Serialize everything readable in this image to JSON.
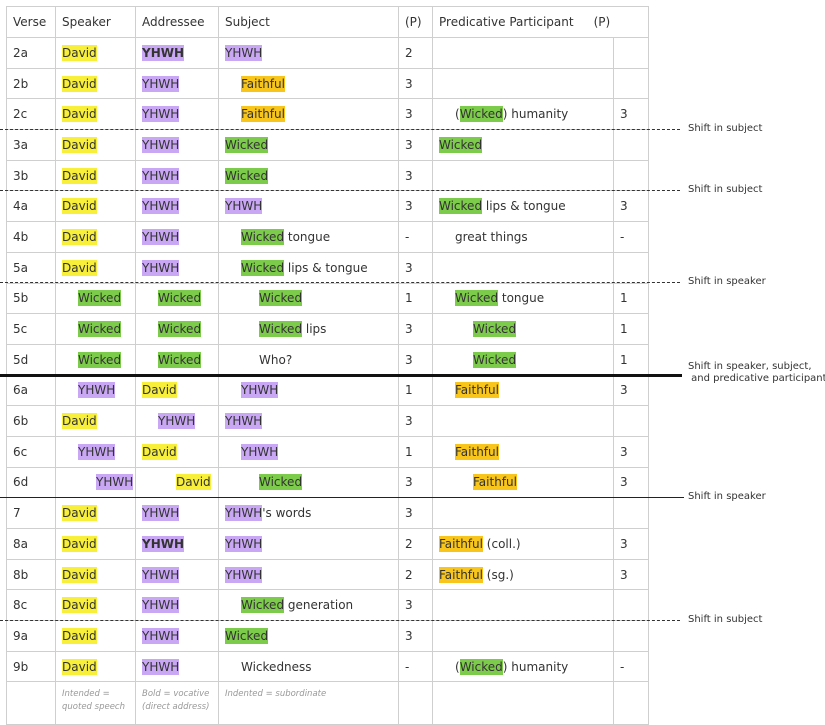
{
  "colors": {
    "yellow": "#f7ef3a",
    "purple": "#c9a7f4",
    "orange": "#f7c51b",
    "green": "#7dcb4a"
  },
  "headers": {
    "verse": "Verse",
    "speaker": "Speaker",
    "addressee": "Addressee",
    "subject": "Subject",
    "p1": "(P)",
    "pred": "Predicative Participant",
    "p2": "(P)"
  },
  "rows": [
    {
      "v": "2a",
      "sp": [
        {
          "t": "David",
          "c": "yellow"
        }
      ],
      "ad": [
        {
          "t": "YHWH",
          "c": "purple",
          "b": true
        }
      ],
      "su": [
        {
          "t": "YHWH",
          "c": "purple"
        }
      ],
      "p": "2",
      "pr": [],
      "pp": ""
    },
    {
      "v": "2b",
      "sp": [
        {
          "t": "David",
          "c": "yellow"
        }
      ],
      "ad": [
        {
          "t": "YHWH",
          "c": "purple"
        }
      ],
      "su": [
        {
          "t": "Faithful",
          "c": "orange"
        }
      ],
      "suI": 1,
      "p": "3",
      "pr": [],
      "pp": ""
    },
    {
      "v": "2c",
      "sp": [
        {
          "t": "David",
          "c": "yellow"
        }
      ],
      "ad": [
        {
          "t": "YHWH",
          "c": "purple"
        }
      ],
      "su": [
        {
          "t": "Faithful",
          "c": "orange"
        }
      ],
      "suI": 1,
      "p": "3",
      "pr": [
        {
          "t": "("
        },
        {
          "t": "Wicked",
          "c": "green"
        },
        {
          "t": ") humanity"
        }
      ],
      "prI": 1,
      "pp": "3"
    },
    {
      "v": "3a",
      "sp": [
        {
          "t": "David",
          "c": "yellow"
        }
      ],
      "ad": [
        {
          "t": "YHWH",
          "c": "purple"
        }
      ],
      "su": [
        {
          "t": "Wicked",
          "c": "green"
        }
      ],
      "p": "3",
      "pr": [
        {
          "t": "Wicked",
          "c": "green"
        }
      ],
      "pp": ""
    },
    {
      "v": "3b",
      "sp": [
        {
          "t": "David",
          "c": "yellow"
        }
      ],
      "ad": [
        {
          "t": "YHWH",
          "c": "purple"
        }
      ],
      "su": [
        {
          "t": "Wicked",
          "c": "green"
        }
      ],
      "p": "3",
      "pr": [],
      "pp": ""
    },
    {
      "v": "4a",
      "sp": [
        {
          "t": "David",
          "c": "yellow"
        }
      ],
      "ad": [
        {
          "t": "YHWH",
          "c": "purple"
        }
      ],
      "su": [
        {
          "t": "YHWH",
          "c": "purple"
        }
      ],
      "p": "3",
      "pr": [
        {
          "t": "Wicked",
          "c": "green"
        },
        {
          "t": " lips & tongue"
        }
      ],
      "pp": "3"
    },
    {
      "v": "4b",
      "sp": [
        {
          "t": "David",
          "c": "yellow"
        }
      ],
      "ad": [
        {
          "t": "YHWH",
          "c": "purple"
        }
      ],
      "su": [
        {
          "t": "Wicked",
          "c": "green"
        },
        {
          "t": " tongue"
        }
      ],
      "suI": 1,
      "p": "-",
      "pr": [
        {
          "t": "great things"
        }
      ],
      "prI": 1,
      "pp": "-"
    },
    {
      "v": "5a",
      "sp": [
        {
          "t": "David",
          "c": "yellow"
        }
      ],
      "ad": [
        {
          "t": "YHWH",
          "c": "purple"
        }
      ],
      "su": [
        {
          "t": "Wicked",
          "c": "green"
        },
        {
          "t": " lips & tongue"
        }
      ],
      "suI": 1,
      "p": "3",
      "pr": [],
      "pp": ""
    },
    {
      "v": "5b",
      "sp": [
        {
          "t": "Wicked",
          "c": "green"
        }
      ],
      "spI": 1,
      "ad": [
        {
          "t": "Wicked",
          "c": "green"
        }
      ],
      "adI": 1,
      "su": [
        {
          "t": "Wicked",
          "c": "green"
        }
      ],
      "suI": 2,
      "p": "1",
      "pr": [
        {
          "t": "Wicked",
          "c": "green"
        },
        {
          "t": " tongue"
        }
      ],
      "prI": 1,
      "pp": "1"
    },
    {
      "v": "5c",
      "sp": [
        {
          "t": "Wicked",
          "c": "green"
        }
      ],
      "spI": 1,
      "ad": [
        {
          "t": "Wicked",
          "c": "green"
        }
      ],
      "adI": 1,
      "su": [
        {
          "t": "Wicked",
          "c": "green"
        },
        {
          "t": " lips"
        }
      ],
      "suI": 2,
      "p": "3",
      "pr": [
        {
          "t": "Wicked",
          "c": "green"
        }
      ],
      "prI": 2,
      "pp": "1"
    },
    {
      "v": "5d",
      "sp": [
        {
          "t": "Wicked",
          "c": "green"
        }
      ],
      "spI": 1,
      "ad": [
        {
          "t": "Wicked",
          "c": "green"
        }
      ],
      "adI": 1,
      "su": [
        {
          "t": "Who?"
        }
      ],
      "suI": 2,
      "p": "3",
      "pr": [
        {
          "t": "Wicked",
          "c": "green"
        }
      ],
      "prI": 2,
      "pp": "1"
    },
    {
      "v": "6a",
      "sp": [
        {
          "t": "YHWH",
          "c": "purple"
        }
      ],
      "spI": 1,
      "ad": [
        {
          "t": "David",
          "c": "yellow"
        }
      ],
      "su": [
        {
          "t": "YHWH",
          "c": "purple"
        }
      ],
      "suI": 1,
      "p": "1",
      "pr": [
        {
          "t": "Faithful",
          "c": "orange"
        }
      ],
      "prI": 1,
      "pp": "3"
    },
    {
      "v": "6b",
      "sp": [
        {
          "t": "David",
          "c": "yellow"
        }
      ],
      "ad": [
        {
          "t": "YHWH",
          "c": "purple"
        }
      ],
      "adI": 1,
      "su": [
        {
          "t": "YHWH",
          "c": "purple"
        }
      ],
      "p": "3",
      "pr": [],
      "pp": ""
    },
    {
      "v": "6c",
      "sp": [
        {
          "t": "YHWH",
          "c": "purple"
        }
      ],
      "spI": 1,
      "ad": [
        {
          "t": "David",
          "c": "yellow"
        }
      ],
      "su": [
        {
          "t": "YHWH",
          "c": "purple"
        }
      ],
      "suI": 1,
      "p": "1",
      "pr": [
        {
          "t": "Faithful",
          "c": "orange"
        }
      ],
      "prI": 1,
      "pp": "3"
    },
    {
      "v": "6d",
      "sp": [
        {
          "t": "YHWH",
          "c": "purple"
        }
      ],
      "spI": 2,
      "ad": [
        {
          "t": "David",
          "c": "yellow"
        }
      ],
      "adI": 2,
      "su": [
        {
          "t": "Wicked",
          "c": "green"
        }
      ],
      "suI": 2,
      "p": "3",
      "pr": [
        {
          "t": "Faithful",
          "c": "orange"
        }
      ],
      "prI": 2,
      "pp": "3"
    },
    {
      "v": "7",
      "sp": [
        {
          "t": "David",
          "c": "yellow"
        }
      ],
      "ad": [
        {
          "t": "YHWH",
          "c": "purple"
        }
      ],
      "su": [
        {
          "t": "YHWH",
          "c": "purple"
        },
        {
          "t": "'s words"
        }
      ],
      "p": "3",
      "pr": [],
      "pp": ""
    },
    {
      "v": "8a",
      "sp": [
        {
          "t": "David",
          "c": "yellow"
        }
      ],
      "ad": [
        {
          "t": "YHWH",
          "c": "purple",
          "b": true
        }
      ],
      "su": [
        {
          "t": "YHWH",
          "c": "purple"
        }
      ],
      "p": "2",
      "pr": [
        {
          "t": "Faithful",
          "c": "orange"
        },
        {
          "t": " (coll.)"
        }
      ],
      "pp": "3"
    },
    {
      "v": "8b",
      "sp": [
        {
          "t": "David",
          "c": "yellow"
        }
      ],
      "ad": [
        {
          "t": "YHWH",
          "c": "purple"
        }
      ],
      "su": [
        {
          "t": "YHWH",
          "c": "purple"
        }
      ],
      "p": "2",
      "pr": [
        {
          "t": "Faithful",
          "c": "orange"
        },
        {
          "t": " (sg.)"
        }
      ],
      "pp": "3"
    },
    {
      "v": "8c",
      "sp": [
        {
          "t": "David",
          "c": "yellow"
        }
      ],
      "ad": [
        {
          "t": "YHWH",
          "c": "purple"
        }
      ],
      "su": [
        {
          "t": "Wicked",
          "c": "green"
        },
        {
          "t": " generation"
        }
      ],
      "suI": 1,
      "p": "3",
      "pr": [],
      "pp": ""
    },
    {
      "v": "9a",
      "sp": [
        {
          "t": "David",
          "c": "yellow"
        }
      ],
      "ad": [
        {
          "t": "YHWH",
          "c": "purple"
        }
      ],
      "su": [
        {
          "t": "Wicked",
          "c": "green"
        }
      ],
      "p": "3",
      "pr": [],
      "pp": ""
    },
    {
      "v": "9b",
      "sp": [
        {
          "t": "David",
          "c": "yellow"
        }
      ],
      "ad": [
        {
          "t": "YHWH",
          "c": "purple"
        }
      ],
      "su": [
        {
          "t": "Wickedness"
        }
      ],
      "suI": 1,
      "p": "-",
      "pr": [
        {
          "t": "("
        },
        {
          "t": "Wicked",
          "c": "green"
        },
        {
          "t": ") humanity"
        }
      ],
      "prI": 1,
      "pp": "-"
    }
  ],
  "footer": {
    "speaker": "Intended = quoted speech",
    "addressee": "Bold = vocative (direct address)",
    "subject": "Indented = subordinate"
  },
  "shifts": [
    {
      "after": "2c",
      "style": "dash",
      "label": "Shift in subject"
    },
    {
      "after": "3b",
      "style": "dash",
      "label": "Shift in subject"
    },
    {
      "after": "5a",
      "style": "dash",
      "label": "Shift in speaker"
    },
    {
      "after": "5d",
      "style": "thick",
      "label": "Shift in speaker, subject,\n and predicative participant"
    },
    {
      "after": "6d",
      "style": "solid",
      "label": "Shift in speaker"
    },
    {
      "after": "8c",
      "style": "dash",
      "label": "Shift in subject"
    }
  ]
}
